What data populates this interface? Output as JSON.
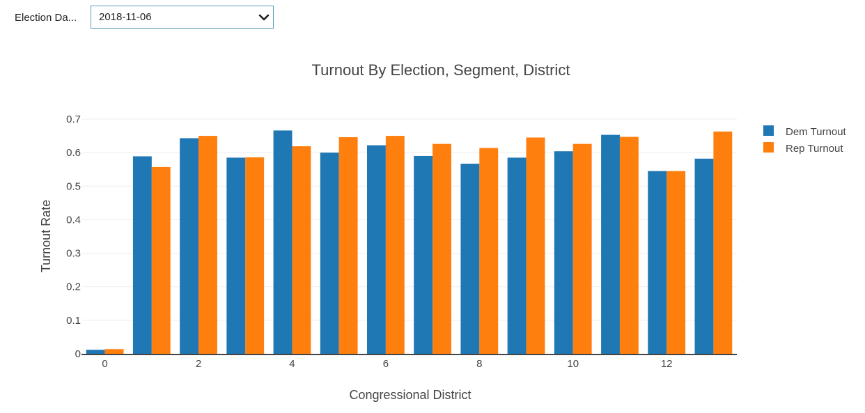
{
  "filter": {
    "label": "Election Da...",
    "selected_value": "2018-11-06"
  },
  "chart_data": {
    "type": "bar",
    "title": "Turnout By Election, Segment, District",
    "xlabel": "Congressional District",
    "ylabel": "Turnout Rate",
    "categories": [
      0,
      1,
      2,
      3,
      4,
      5,
      6,
      7,
      8,
      9,
      10,
      11,
      12,
      13
    ],
    "x_tick_labels": [
      "0",
      "2",
      "4",
      "6",
      "8",
      "10",
      "12"
    ],
    "x_tick_values": [
      0,
      2,
      4,
      6,
      8,
      10,
      12
    ],
    "ylim": [
      0,
      0.7
    ],
    "y_ticks": [
      0,
      0.1,
      0.2,
      0.3,
      0.4,
      0.5,
      0.6,
      0.7
    ],
    "y_tick_labels": [
      "0",
      "0.1",
      "0.2",
      "0.3",
      "0.4",
      "0.5",
      "0.6",
      "0.7"
    ],
    "grid": true,
    "legend_position": "top-right",
    "series": [
      {
        "name": "Dem Turnout",
        "color": "#1f77b4",
        "values": [
          0.012,
          0.589,
          0.643,
          0.585,
          0.666,
          0.6,
          0.622,
          0.59,
          0.567,
          0.585,
          0.604,
          0.653,
          0.545,
          0.582
        ]
      },
      {
        "name": "Rep Turnout",
        "color": "#ff7f0e",
        "values": [
          0.014,
          0.557,
          0.65,
          0.586,
          0.619,
          0.646,
          0.65,
          0.626,
          0.614,
          0.645,
          0.626,
          0.647,
          0.545,
          0.663
        ]
      }
    ]
  }
}
